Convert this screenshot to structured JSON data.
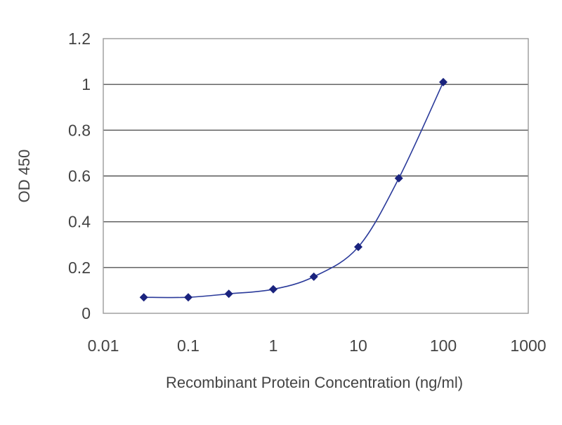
{
  "chart_data": {
    "type": "line",
    "title": "",
    "xlabel": "Recombinant Protein Concentration (ng/ml)",
    "ylabel": "OD 450",
    "x_scale": "log",
    "xlim": [
      0.01,
      1000
    ],
    "ylim": [
      0,
      1.2
    ],
    "x_ticks": [
      "0.01",
      "0.1",
      "1",
      "10",
      "100",
      "1000"
    ],
    "y_ticks": [
      "0",
      "0.2",
      "0.4",
      "0.6",
      "0.8",
      "1",
      "1.2"
    ],
    "grid": "horizontal",
    "series": [
      {
        "x": [
          0.03,
          0.1,
          0.3,
          1,
          3,
          10,
          30,
          100
        ],
        "y": [
          0.07,
          0.07,
          0.085,
          0.105,
          0.16,
          0.29,
          0.59,
          1.01
        ]
      }
    ],
    "colors": {
      "line": "#2a3a9a",
      "marker": "#1a237e",
      "grid": "#555555",
      "plot_border": "#9a9a9a",
      "text": "#444444"
    }
  }
}
